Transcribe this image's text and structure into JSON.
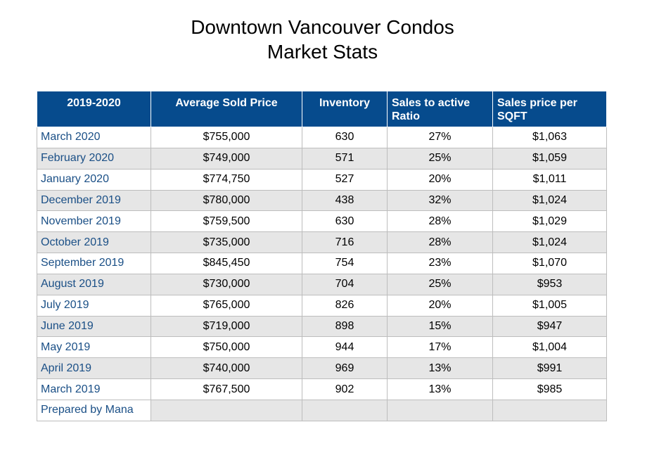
{
  "title": {
    "line1": "Downtown Vancouver Condos",
    "line2": "Market Stats"
  },
  "colors": {
    "header_bg": "#064b8d",
    "row_label_text": "#1a4f86",
    "alt_row_bg": "#e6e6e6"
  },
  "chart_data": {
    "type": "table",
    "title": "Downtown Vancouver Condos Market Stats",
    "columns": [
      "2019-2020",
      "Average Sold Price",
      "Inventory",
      "Sales to active Ratio",
      "Sales price per SQFT"
    ],
    "rows": [
      [
        "March 2020",
        "$755,000",
        "630",
        "27%",
        "$1,063"
      ],
      [
        "February 2020",
        "$749,000",
        "571",
        "25%",
        "$1,059"
      ],
      [
        "January 2020",
        "$774,750",
        "527",
        "20%",
        "$1,011"
      ],
      [
        "December 2019",
        "$780,000",
        "438",
        "32%",
        "$1,024"
      ],
      [
        "November 2019",
        "$759,500",
        "630",
        "28%",
        "$1,029"
      ],
      [
        "October 2019",
        "$735,000",
        "716",
        "28%",
        "$1,024"
      ],
      [
        "September 2019",
        "$845,450",
        "754",
        "23%",
        "$1,070"
      ],
      [
        "August 2019",
        "$730,000",
        "704",
        "25%",
        "$953"
      ],
      [
        "July 2019",
        "$765,000",
        "826",
        "20%",
        "$1,005"
      ],
      [
        "June 2019",
        "$719,000",
        "898",
        "15%",
        "$947"
      ],
      [
        "May 2019",
        "$750,000",
        "944",
        "17%",
        "$1,004"
      ],
      [
        "April 2019",
        "$740,000",
        "969",
        "13%",
        "$991"
      ],
      [
        "March 2019",
        "$767,500",
        "902",
        "13%",
        "$985"
      ]
    ],
    "footer": [
      "Prepared by Mana",
      "",
      "",
      "",
      ""
    ]
  }
}
